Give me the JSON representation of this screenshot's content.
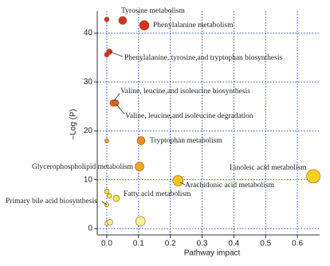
{
  "chart_data": {
    "type": "scatter",
    "x_label": "Pathway impact",
    "y_label": "–Log (P)",
    "x": [
      0.0,
      0.05,
      0.118,
      0.008,
      0.0,
      0.02,
      0.028,
      0.0,
      0.108,
      0.103,
      0.224,
      0.65,
      0.0,
      0.008,
      0.03,
      0.0,
      0.0,
      0.01,
      0.106
    ],
    "values": [
      42.8,
      42.6,
      41.6,
      36.2,
      35.6,
      25.7,
      25.7,
      18.0,
      18.0,
      12.7,
      9.8,
      10.7,
      7.6,
      6.7,
      6.2,
      4.9,
      1.0,
      1.3,
      1.5
    ],
    "sizes": [
      3,
      5,
      6,
      3.5,
      3,
      4,
      4,
      2.5,
      5,
      5.5,
      6.5,
      8.5,
      3,
      3,
      4,
      2.5,
      2.5,
      3.5,
      6
    ],
    "colors": [
      "#d73027",
      "#d73027",
      "#d7301f",
      "#d73027",
      "#d73027",
      "#e8601c",
      "#e8601c",
      "#f39c25",
      "#f08a1c",
      "#f5a623",
      "#f7c31f",
      "#f8d020",
      "#f7e04a",
      "#f7e04a",
      "#f2e84d",
      "#f5e65a",
      "#f6f0a0",
      "#f6f0a0",
      "#f4ee9a"
    ],
    "annotations": [
      "Tyrosine metabolism",
      "Phenylalanine metabolism",
      "Phenylalanine, tyrosine,and tryptophan biosynthesis",
      "Valine, leucine,and isoleucine biosynthesis",
      "Valine, leucine,and isoleucine degradation",
      "Tryptophan metabolism",
      "Glycerophospholipid metabolism",
      "Arachidonic acid metabolism",
      "Linoleic acid metabolism",
      "Fatty acid metabolism",
      "Primary bile acid biosynthesis"
    ],
    "xlim": [
      -0.03,
      0.67
    ],
    "ylim": [
      -1.3,
      44.5
    ],
    "xticks": [
      {
        "value": 0,
        "label": "0.0"
      },
      0.1,
      0.2,
      0.3,
      0.4,
      0.5,
      0.6
    ],
    "yticks": [
      0,
      10,
      20,
      30,
      40
    ],
    "grid": true,
    "grid_color": "#2b4fd6"
  }
}
